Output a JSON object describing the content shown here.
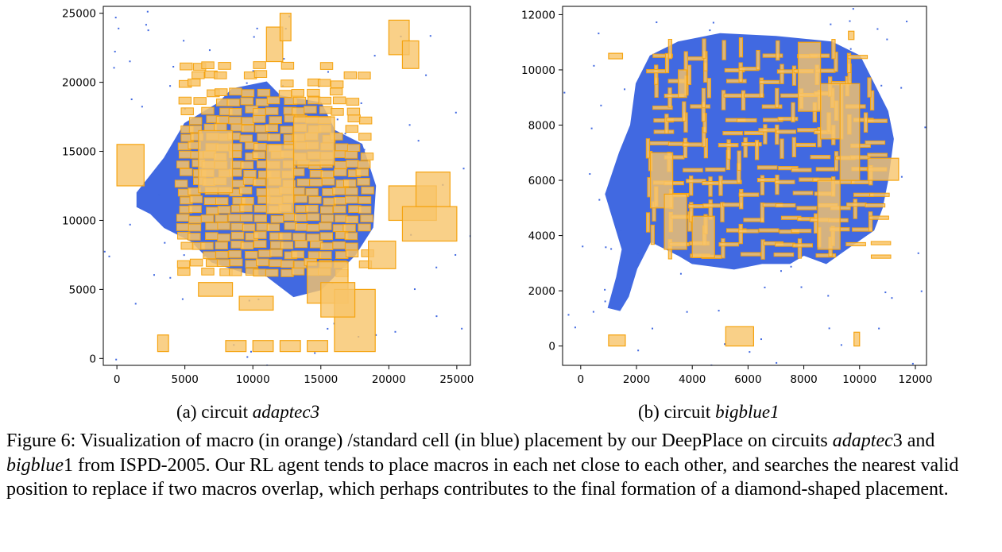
{
  "colors": {
    "macro": "#f5a30f",
    "macro_fill": "#f8c46a",
    "cell": "#4169e1",
    "axis": "#000000"
  },
  "chart_data": [
    {
      "type": "scatter",
      "title": "",
      "subcaption_prefix": "(a) circuit ",
      "subcaption_name": "adaptec3",
      "xlabel": "",
      "ylabel": "",
      "xlim": [
        -1000,
        26000
      ],
      "ylim": [
        -500,
        25500
      ],
      "xticks": [
        0,
        5000,
        10000,
        15000,
        20000,
        25000
      ],
      "yticks": [
        0,
        5000,
        10000,
        15000,
        20000,
        25000
      ],
      "series": [
        {
          "kind": "standard_cells",
          "shape": "polygon",
          "points": [
            [
              1500,
              12000
            ],
            [
              3500,
              14500
            ],
            [
              5000,
              17000
            ],
            [
              7500,
              18500
            ],
            [
              8500,
              19500
            ],
            [
              11000,
              20000
            ],
            [
              12000,
              19000
            ],
            [
              15000,
              18500
            ],
            [
              16000,
              16500
            ],
            [
              18000,
              15500
            ],
            [
              18500,
              14000
            ],
            [
              19000,
              12500
            ],
            [
              18800,
              9500
            ],
            [
              17500,
              7500
            ],
            [
              16500,
              6500
            ],
            [
              15000,
              5000
            ],
            [
              13000,
              4500
            ],
            [
              11000,
              6000
            ],
            [
              9500,
              6200
            ],
            [
              7000,
              7000
            ],
            [
              5500,
              8500
            ],
            [
              3500,
              9500
            ],
            [
              2500,
              10500
            ],
            [
              1500,
              11000
            ]
          ]
        },
        {
          "kind": "macros",
          "shape": "rects",
          "rects": [
            [
              0,
              12500,
              2000,
              3000
            ],
            [
              11000,
              10500,
              2000,
              5000
            ],
            [
              6000,
              12000,
              2500,
              4500
            ],
            [
              13000,
              14000,
              3000,
              3500
            ],
            [
              20000,
              10000,
              3500,
              2500
            ],
            [
              21000,
              8500,
              4000,
              2500
            ],
            [
              22000,
              11000,
              2500,
              2500
            ],
            [
              14000,
              4000,
              3000,
              3000
            ],
            [
              16000,
              500,
              3000,
              4500
            ],
            [
              15000,
              3000,
              2500,
              2500
            ],
            [
              3000,
              500,
              800,
              1200
            ],
            [
              11000,
              21500,
              1200,
              2500
            ],
            [
              12000,
              23000,
              800,
              2000
            ],
            [
              20000,
              22000,
              1500,
              2500
            ],
            [
              21000,
              21000,
              1200,
              2000
            ],
            [
              8000,
              500,
              1500,
              800
            ],
            [
              10000,
              500,
              1500,
              800
            ],
            [
              12000,
              500,
              1500,
              800
            ],
            [
              14000,
              500,
              1500,
              800
            ],
            [
              6000,
              4500,
              2500,
              1000
            ],
            [
              9000,
              3500,
              2500,
              1000
            ],
            [
              18500,
              6500,
              2000,
              2000
            ]
          ],
          "grid_blocks": [
            {
              "x_range": [
                4500,
                18500
              ],
              "y_range": [
                6000,
                21000
              ],
              "w": 900,
              "h": 500,
              "dx": 950,
              "dy": 650
            }
          ]
        }
      ]
    },
    {
      "type": "scatter",
      "title": "",
      "subcaption_prefix": "(b) circuit ",
      "subcaption_name": "bigblue1",
      "xlabel": "",
      "ylabel": "",
      "xlim": [
        -650,
        12400
      ],
      "ylim": [
        -700,
        12300
      ],
      "xticks": [
        0,
        2000,
        4000,
        6000,
        8000,
        10000,
        12000
      ],
      "yticks": [
        0,
        2000,
        4000,
        6000,
        8000,
        10000,
        12000
      ],
      "series": [
        {
          "kind": "standard_cells",
          "shape": "polygon",
          "points": [
            [
              1000,
              1400
            ],
            [
              1300,
              2500
            ],
            [
              1500,
              3500
            ],
            [
              1200,
              4500
            ],
            [
              900,
              5500
            ],
            [
              1400,
              7000
            ],
            [
              1800,
              8000
            ],
            [
              2000,
              9500
            ],
            [
              2500,
              10500
            ],
            [
              3500,
              11000
            ],
            [
              5000,
              11300
            ],
            [
              7000,
              11200
            ],
            [
              9000,
              11000
            ],
            [
              10000,
              10500
            ],
            [
              10500,
              9500
            ],
            [
              11000,
              8500
            ],
            [
              11200,
              7500
            ],
            [
              11000,
              6000
            ],
            [
              10800,
              5000
            ],
            [
              10500,
              4200
            ],
            [
              9500,
              3500
            ],
            [
              8800,
              3000
            ],
            [
              8000,
              3300
            ],
            [
              7500,
              3000
            ],
            [
              6500,
              3000
            ],
            [
              5500,
              2800
            ],
            [
              4000,
              3000
            ],
            [
              3500,
              3300
            ],
            [
              2500,
              3800
            ],
            [
              2000,
              2800
            ],
            [
              1700,
              1800
            ],
            [
              1400,
              1300
            ]
          ]
        },
        {
          "kind": "macros",
          "shape": "rects",
          "rects": [
            [
              7800,
              8500,
              800,
              2500
            ],
            [
              8600,
              7500,
              800,
              2000
            ],
            [
              9300,
              6000,
              700,
              3500
            ],
            [
              2500,
              5000,
              800,
              2000
            ],
            [
              3000,
              3500,
              800,
              2000
            ],
            [
              4000,
              3200,
              800,
              1500
            ],
            [
              8500,
              3500,
              800,
              2500
            ],
            [
              10300,
              6000,
              1100,
              800
            ],
            [
              5200,
              0,
              1000,
              700
            ],
            [
              9800,
              0,
              200,
              500
            ],
            [
              1000,
              0,
              600,
              400
            ],
            [
              1000,
              10400,
              500,
              200
            ],
            [
              9600,
              11100,
              200,
              300
            ],
            [
              3500,
              9000,
              300,
              1000
            ]
          ],
          "grid_blocks": [
            {
              "x_range": [
                2500,
                10500
              ],
              "y_range": [
                3200,
                10800
              ],
              "w": 700,
              "h": 120,
              "dx": 650,
              "dy": 450
            }
          ]
        }
      ]
    }
  ],
  "caption": {
    "label": "Figure 6:",
    "text_1": " Visualization of macro (in orange) /standard cell (in blue) placement by our DeepPlace on circuits ",
    "name_1": "adaptec",
    "num_1": "3",
    "text_2": " and ",
    "name_2": "bigblue",
    "num_2": "1",
    "text_3": " from ISPD-2005. Our RL agent tends to place macros in each net close to each other, and searches the nearest valid position to replace if two macros overlap, which perhaps contributes to the final formation of a diamond-shaped placement."
  }
}
